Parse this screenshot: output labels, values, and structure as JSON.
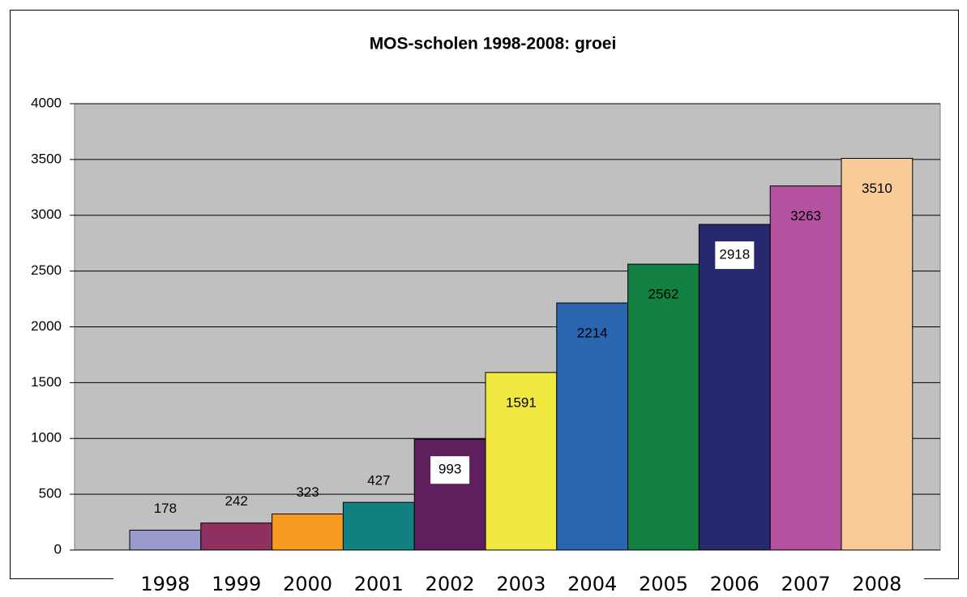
{
  "chart_data": {
    "type": "bar",
    "title": "MOS-scholen 1998-2008: groei",
    "categories": [
      "1998",
      "1999",
      "2000",
      "2001",
      "2002",
      "2003",
      "2004",
      "2005",
      "2006",
      "2007",
      "2008"
    ],
    "values": [
      178,
      242,
      323,
      427,
      993,
      1591,
      2214,
      2562,
      2918,
      3263,
      3510
    ],
    "colors": [
      "#9999cc",
      "#8e3060",
      "#f79a1f",
      "#118080",
      "#5f1f5f",
      "#f0e840",
      "#2a66b0",
      "#128040",
      "#28286e",
      "#b452a0",
      "#f8cb98"
    ],
    "ylim": [
      0,
      4000
    ],
    "yticks": [
      0,
      500,
      1000,
      1500,
      2000,
      2500,
      3000,
      3500,
      4000
    ],
    "grid": true
  }
}
